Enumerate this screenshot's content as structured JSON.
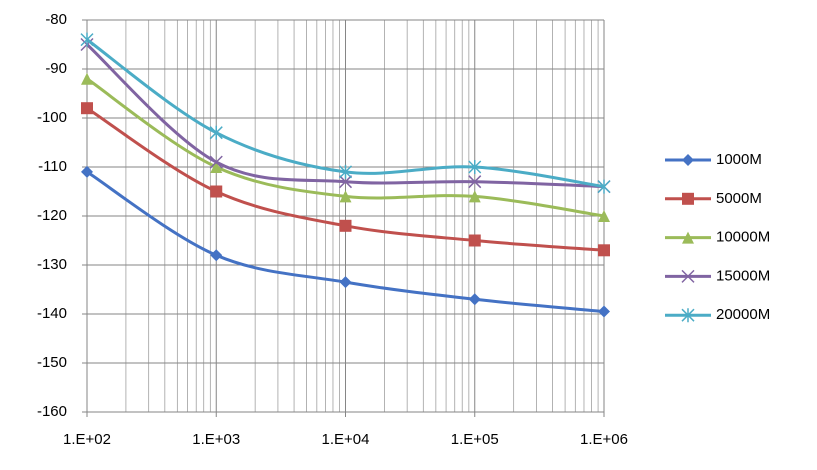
{
  "chart_data": {
    "type": "line",
    "x": [
      100,
      1000,
      10000,
      100000,
      1000000
    ],
    "xscale": "log",
    "xlim": [
      100,
      1000000
    ],
    "xticks": [
      {
        "value": 100,
        "label": "1.E+02"
      },
      {
        "value": 1000,
        "label": "1.E+03"
      },
      {
        "value": 10000,
        "label": "1.E+04"
      },
      {
        "value": 100000,
        "label": "1.E+05"
      },
      {
        "value": 1000000,
        "label": "1.E+06"
      }
    ],
    "xminorticks": [
      200,
      300,
      400,
      500,
      600,
      700,
      800,
      900,
      2000,
      3000,
      4000,
      5000,
      6000,
      7000,
      8000,
      9000,
      20000,
      30000,
      40000,
      50000,
      60000,
      70000,
      80000,
      90000,
      200000,
      300000,
      400000,
      500000,
      600000,
      700000,
      800000,
      900000
    ],
    "ylim": [
      -160,
      -80
    ],
    "yticks": [
      -160,
      -150,
      -140,
      -130,
      -120,
      -110,
      -100,
      -90,
      -80
    ],
    "grid": true,
    "smooth": true,
    "legend": "right",
    "series": [
      {
        "name": "1000M",
        "color": "#4472c4",
        "marker": "diamond",
        "values": [
          -111,
          -128,
          -133.5,
          -137,
          -139.5
        ]
      },
      {
        "name": "5000M",
        "color": "#c0504d",
        "marker": "square",
        "values": [
          -98,
          -115,
          -122,
          -125,
          -127
        ]
      },
      {
        "name": "10000M",
        "color": "#9bbb59",
        "marker": "triangle",
        "values": [
          -92,
          -110,
          -116,
          -116,
          -120
        ]
      },
      {
        "name": "15000M",
        "color": "#8064a2",
        "marker": "x",
        "values": [
          -85,
          -109,
          -113,
          -113,
          -114
        ]
      },
      {
        "name": "20000M",
        "color": "#4bacc6",
        "marker": "star",
        "values": [
          -84,
          -103,
          -111,
          -110,
          -114
        ]
      }
    ]
  }
}
